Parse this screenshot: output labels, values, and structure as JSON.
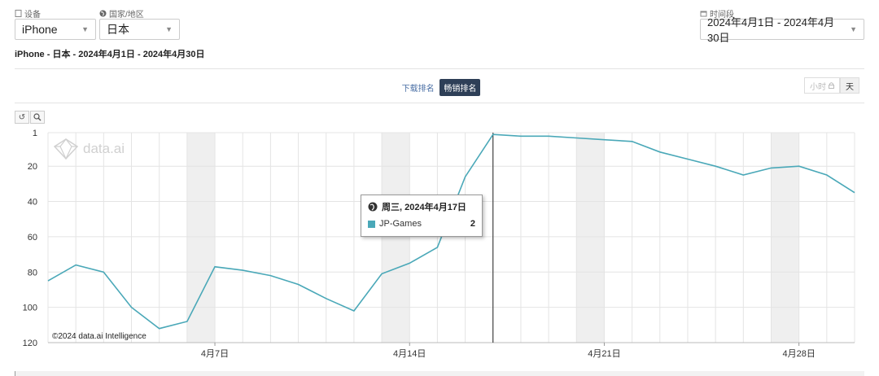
{
  "filters": {
    "device": {
      "label": "设备",
      "icon": "phone-icon",
      "value": "iPhone"
    },
    "country": {
      "label": "国家/地区",
      "icon": "globe-icon",
      "value": "日本"
    },
    "period": {
      "label": "时间段",
      "icon": "calendar-icon",
      "value": "2024年4月1日 - 2024年4月30日"
    }
  },
  "subtitle": "iPhone - 日本 - 2024年4月1日 - 2024年4月30日",
  "rank_toggle": {
    "downloads": "下载排名",
    "grossing": "畅销排名",
    "active": "grossing"
  },
  "granularity": {
    "hour": "小时",
    "day": "天",
    "active": "day"
  },
  "tools": {
    "reset": "reset-zoom-icon",
    "zoom": "zoom-icon"
  },
  "watermark": "data.ai",
  "copyright": "©2024 data.ai Intelligence",
  "tooltip": {
    "title": "周三, 2024年4月17日",
    "series": "JP-Games",
    "value": "2"
  },
  "colors": {
    "line": "#4aa8b8",
    "weekend": "#efefef",
    "grid": "#e4e4e4"
  },
  "chart_data": {
    "type": "line",
    "ylim": [
      1,
      120
    ],
    "y_inverted": true,
    "yticks": [
      1,
      20,
      40,
      60,
      80,
      100,
      120
    ],
    "x_tick_labels": [
      {
        "day": 7,
        "label": "4月7日"
      },
      {
        "day": 14,
        "label": "4月14日"
      },
      {
        "day": 21,
        "label": "4月21日"
      },
      {
        "day": 28,
        "label": "4月28日"
      }
    ],
    "weekend_bands": [
      [
        6,
        7
      ],
      [
        13,
        14
      ],
      [
        20,
        21
      ],
      [
        27,
        28
      ]
    ],
    "crosshair_day": 17,
    "series": [
      {
        "name": "JP-Games",
        "x": [
          1,
          2,
          3,
          4,
          5,
          6,
          7,
          8,
          9,
          10,
          11,
          12,
          13,
          14,
          15,
          16,
          17,
          18,
          19,
          20,
          21,
          22,
          23,
          24,
          25,
          26,
          27,
          28,
          29,
          30
        ],
        "values": [
          85,
          76,
          80,
          100,
          112,
          108,
          77,
          79,
          82,
          87,
          95,
          102,
          81,
          75,
          66,
          26,
          2,
          3,
          3,
          4,
          5,
          6,
          12,
          16,
          20,
          25,
          21,
          20,
          25,
          35
        ]
      }
    ],
    "grid": true
  }
}
